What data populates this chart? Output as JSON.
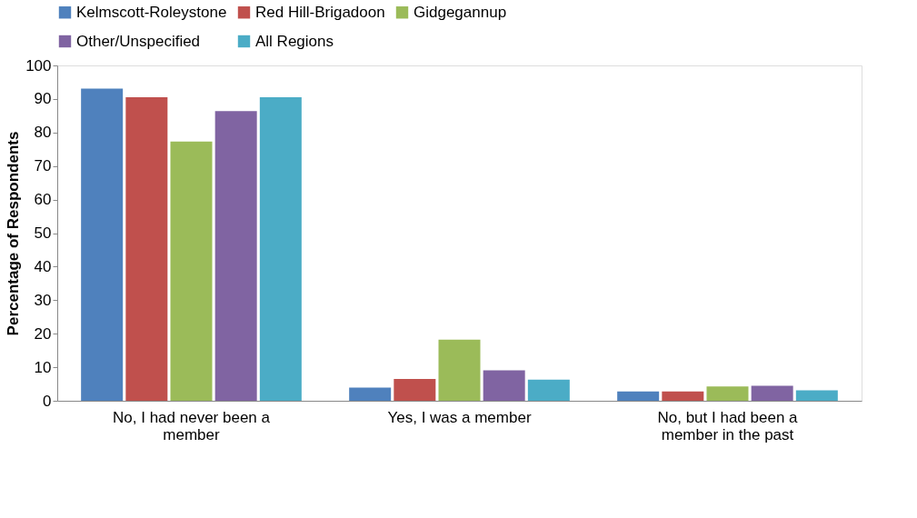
{
  "chart_data": {
    "type": "bar",
    "ylabel": "Percentage of Respondents",
    "categories": [
      "No, I had never been a member",
      "Yes, I was a member",
      "No, but I had been a member in the past"
    ],
    "series": [
      {
        "name": "Kelmscott-Roleystone",
        "color": "#4f81bd",
        "values": [
          93.1,
          3.9,
          2.8
        ]
      },
      {
        "name": "Red Hill-Brigadoon",
        "color": "#c0504d",
        "values": [
          90.5,
          6.5,
          2.8
        ]
      },
      {
        "name": "Gidgegannup",
        "color": "#9bbb59",
        "values": [
          77.3,
          18.2,
          4.3
        ]
      },
      {
        "name": "Other/Unspecified",
        "color": "#8064a2",
        "values": [
          86.4,
          9.1,
          4.5
        ]
      },
      {
        "name": "All Regions",
        "color": "#4bacc6",
        "values": [
          90.5,
          6.3,
          3.1
        ]
      }
    ],
    "ylim": [
      0,
      100
    ],
    "yticks": [
      0,
      10,
      20,
      30,
      40,
      50,
      60,
      70,
      80,
      90,
      100
    ],
    "grid": false,
    "legend": "top"
  }
}
